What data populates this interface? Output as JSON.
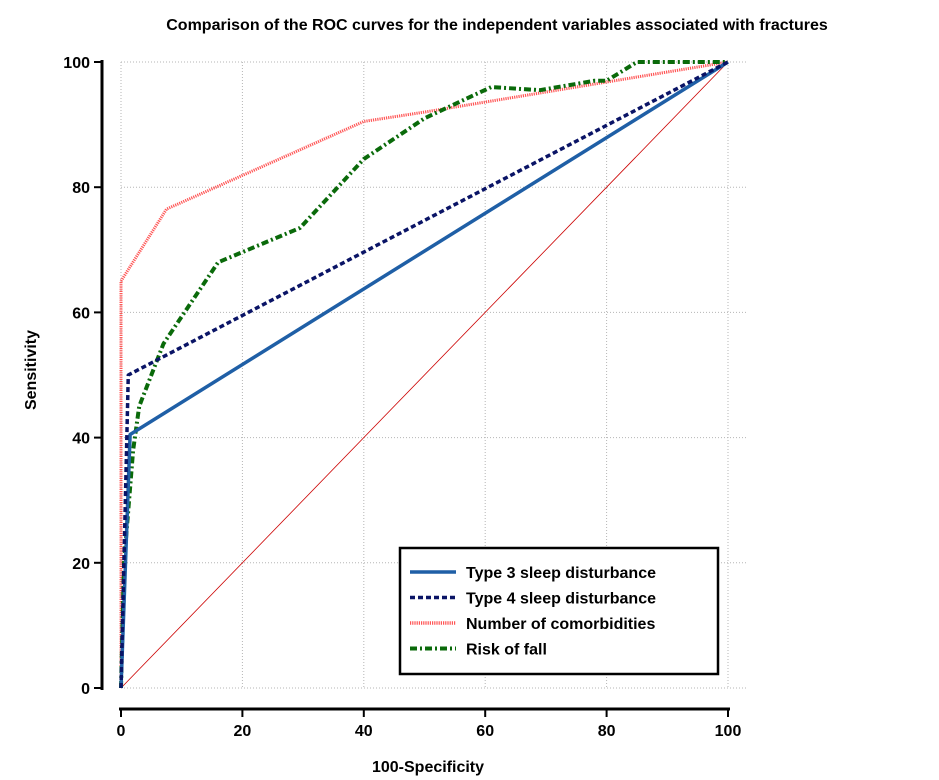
{
  "chart_data": {
    "type": "line",
    "title": "Comparison of the ROC curves for the independent variables associated with fractures",
    "xlabel": "100-Specificity",
    "ylabel": "Sensitivity",
    "xlim": [
      0,
      100
    ],
    "ylim": [
      0,
      100
    ],
    "xticks": [
      0,
      20,
      40,
      60,
      80,
      100
    ],
    "yticks": [
      0,
      20,
      40,
      60,
      80,
      100
    ],
    "grid": true,
    "legend_position": "bottom-right",
    "diagonal": {
      "x": [
        0,
        100
      ],
      "y": [
        0,
        100
      ],
      "color": "#cc0000"
    },
    "series": [
      {
        "name": "Type 3 sleep disturbance",
        "color": "#1f5fa6",
        "style": "solid",
        "x": [
          0,
          1.5,
          100
        ],
        "y": [
          0,
          40.5,
          100
        ]
      },
      {
        "name": "Type 4 sleep disturbance",
        "color": "#0a1466",
        "style": "dashed",
        "x": [
          0,
          1.2,
          100
        ],
        "y": [
          0,
          50,
          100
        ]
      },
      {
        "name": "Number of comorbidities",
        "color": "#ff5555",
        "style": "dotted-thick",
        "x": [
          0,
          0,
          0,
          7.5,
          40,
          50,
          100
        ],
        "y": [
          0,
          30,
          65,
          76.5,
          90.5,
          92,
          100
        ]
      },
      {
        "name": "Risk of fall",
        "color": "#0a6a0a",
        "style": "dashdot",
        "x": [
          0,
          0.5,
          2,
          3,
          5,
          7,
          16,
          29.5,
          40,
          50,
          61,
          69,
          78,
          80,
          85,
          100
        ],
        "y": [
          0,
          20,
          38,
          45,
          50,
          55,
          68,
          73.5,
          84.5,
          91,
          96,
          95.5,
          97,
          97,
          100,
          100
        ]
      }
    ]
  }
}
